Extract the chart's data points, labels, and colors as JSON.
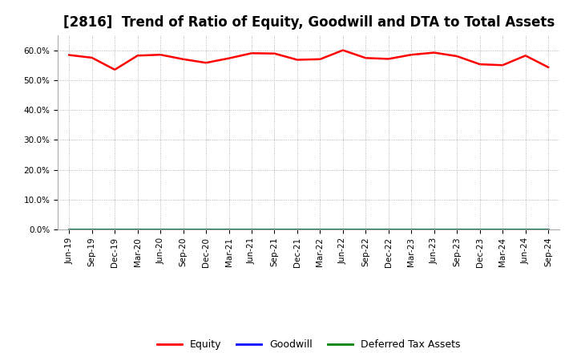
{
  "title": "[2816]  Trend of Ratio of Equity, Goodwill and DTA to Total Assets",
  "x_labels": [
    "Jun-19",
    "Sep-19",
    "Dec-19",
    "Mar-20",
    "Jun-20",
    "Sep-20",
    "Dec-20",
    "Mar-21",
    "Jun-21",
    "Sep-21",
    "Dec-21",
    "Mar-22",
    "Jun-22",
    "Sep-22",
    "Dec-22",
    "Mar-23",
    "Jun-23",
    "Sep-23",
    "Dec-23",
    "Mar-24",
    "Jun-24",
    "Sep-24"
  ],
  "equity": [
    0.584,
    0.575,
    0.535,
    0.582,
    0.585,
    0.57,
    0.558,
    0.573,
    0.59,
    0.589,
    0.568,
    0.57,
    0.6,
    0.574,
    0.571,
    0.585,
    0.592,
    0.58,
    0.553,
    0.55,
    0.582,
    0.543
  ],
  "goodwill": [
    0.0,
    0.0,
    0.0,
    0.0,
    0.0,
    0.0,
    0.0,
    0.0,
    0.0,
    0.0,
    0.0,
    0.0,
    0.0,
    0.0,
    0.0,
    0.0,
    0.0,
    0.0,
    0.0,
    0.0,
    0.0,
    0.0
  ],
  "dta": [
    0.0,
    0.0,
    0.0,
    0.0,
    0.0,
    0.0,
    0.0,
    0.0,
    0.0,
    0.0,
    0.0,
    0.0,
    0.0,
    0.0,
    0.0,
    0.0,
    0.0,
    0.0,
    0.0,
    0.0,
    0.0,
    0.0
  ],
  "equity_color": "#FF0000",
  "goodwill_color": "#0000FF",
  "dta_color": "#008000",
  "ylim": [
    0.0,
    0.65
  ],
  "yticks": [
    0.0,
    0.1,
    0.2,
    0.3,
    0.4,
    0.5,
    0.6
  ],
  "ytick_labels": [
    "0.0%",
    "10.0%",
    "20.0%",
    "30.0%",
    "40.0%",
    "50.0%",
    "60.0%"
  ],
  "background_color": "#FFFFFF",
  "grid_color": "#999999",
  "title_fontsize": 12,
  "tick_fontsize": 7.5,
  "legend_entries": [
    "Equity",
    "Goodwill",
    "Deferred Tax Assets"
  ]
}
